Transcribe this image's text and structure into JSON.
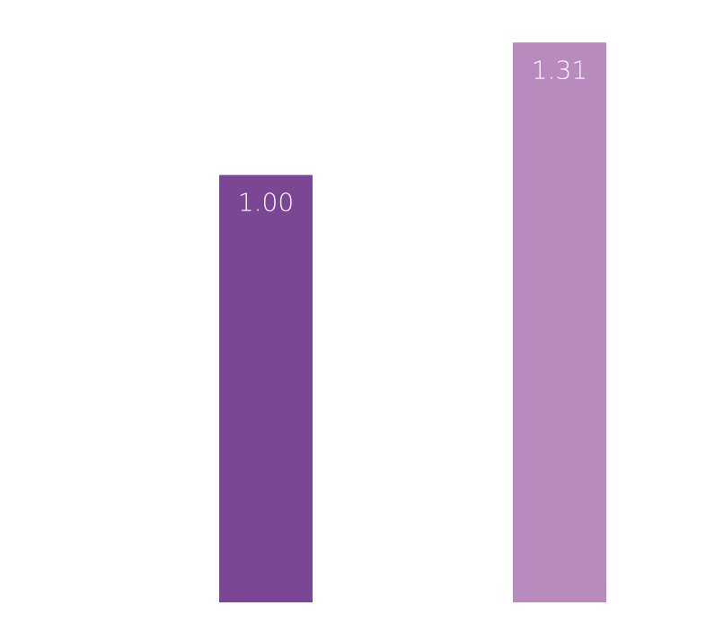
{
  "chart_data": {
    "type": "bar",
    "categories": [
      "",
      ""
    ],
    "values": [
      1.0,
      1.31
    ],
    "data_labels": [
      "1.00",
      "1.31"
    ],
    "colors": [
      "#7b4795",
      "#b98abe"
    ],
    "title": "",
    "xlabel": "",
    "ylabel": "",
    "ylim": [
      0,
      1.38
    ],
    "grid": false,
    "axes_visible": false,
    "legend": "none"
  }
}
